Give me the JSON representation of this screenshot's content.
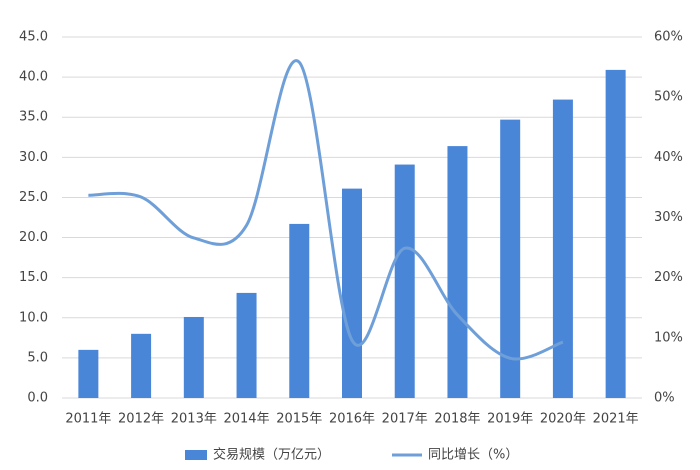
{
  "chart_data": {
    "type": "bar_line",
    "categories": [
      "2011年",
      "2012年",
      "2013年",
      "2014年",
      "2015年",
      "2016年",
      "2017年",
      "2018年",
      "2019年",
      "2020年",
      "2021年"
    ],
    "series": [
      {
        "name": "交易规模（万亿元）",
        "type": "bar",
        "color": "#4a86d8",
        "values": [
          6.0,
          8.0,
          10.1,
          13.1,
          21.7,
          26.1,
          29.1,
          31.4,
          34.7,
          37.2,
          40.9
        ]
      },
      {
        "name": "同比增长（%）",
        "type": "line",
        "axis": "y2",
        "color": "#6f9fd8",
        "values": [
          33.7,
          33.4,
          26.6,
          28.7,
          55.8,
          9.6,
          24.9,
          13.8,
          6.6,
          9.3,
          null
        ]
      }
    ],
    "ylim": [
      0,
      45
    ],
    "yticks": [
      {
        "value": 0,
        "label": "0.0"
      },
      {
        "value": 5,
        "label": "5.0"
      },
      {
        "value": 10,
        "label": "10.0"
      },
      {
        "value": 15,
        "label": "15.0"
      },
      {
        "value": 20,
        "label": "20.0"
      },
      {
        "value": 25,
        "label": "25.0"
      },
      {
        "value": 30,
        "label": "30.0"
      },
      {
        "value": 35,
        "label": "35.0"
      },
      {
        "value": 40,
        "label": "40.0"
      },
      {
        "value": 45,
        "label": "45.0"
      }
    ],
    "y2lim": [
      0,
      60
    ],
    "y2ticks": [
      {
        "value": 0,
        "label": "0%"
      },
      {
        "value": 10,
        "label": "10%"
      },
      {
        "value": 20,
        "label": "20%"
      },
      {
        "value": 30,
        "label": "30%"
      },
      {
        "value": 40,
        "label": "40%"
      },
      {
        "value": 50,
        "label": "50%"
      },
      {
        "value": 60,
        "label": "60%"
      }
    ],
    "grid": true,
    "legend": "bottom"
  }
}
